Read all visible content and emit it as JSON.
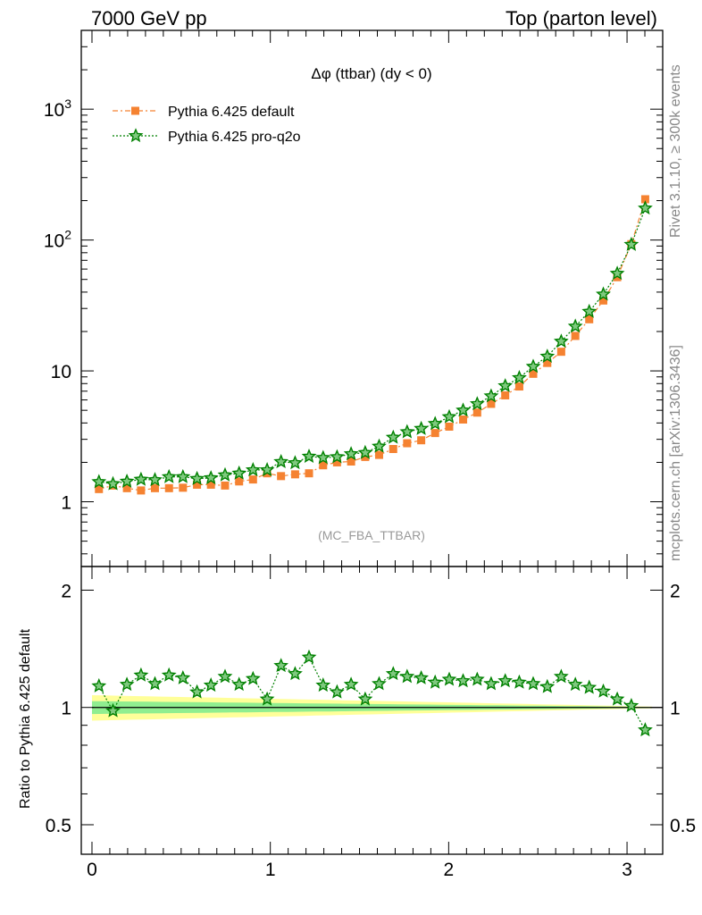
{
  "header": {
    "left": "7000 GeV pp",
    "right": "Top (parton level)"
  },
  "side_labels": {
    "rivet": "Rivet 3.1.10, ≥ 300k events",
    "mcplots": "mcplots.cern.ch [arXiv:1306.3436]"
  },
  "colors": {
    "default": "#f58231",
    "proq2o": "#008000",
    "band_inner": "#90ee90",
    "band_outer": "#ffff99"
  },
  "chart_data": [
    {
      "type": "line",
      "title": "Δφ (ttbar) (dy < 0)",
      "annotation": "(MC_FBA_TTBAR)",
      "yscale": "log",
      "ylim": [
        0.32,
        4000
      ],
      "xlim": [
        -0.06,
        3.2
      ],
      "yticks": [
        {
          "v": 1,
          "label": "1"
        },
        {
          "v": 10,
          "label": "10"
        },
        {
          "v": 100,
          "label": "10",
          "sup": "2"
        },
        {
          "v": 1000,
          "label": "10",
          "sup": "3"
        }
      ],
      "legend_position": "top-left",
      "x": [
        0.039,
        0.118,
        0.196,
        0.275,
        0.353,
        0.432,
        0.51,
        0.589,
        0.667,
        0.746,
        0.825,
        0.903,
        0.982,
        1.06,
        1.139,
        1.217,
        1.296,
        1.374,
        1.453,
        1.532,
        1.61,
        1.689,
        1.767,
        1.846,
        1.924,
        2.003,
        2.081,
        2.16,
        2.238,
        2.317,
        2.396,
        2.474,
        2.553,
        2.631,
        2.71,
        2.788,
        2.867,
        2.945,
        3.024,
        3.102
      ],
      "series": [
        {
          "name": "Pythia 6.425 default",
          "color_key": "default",
          "marker": "square",
          "values": [
            1.25,
            1.33,
            1.27,
            1.22,
            1.27,
            1.27,
            1.28,
            1.35,
            1.35,
            1.33,
            1.43,
            1.48,
            1.65,
            1.57,
            1.62,
            1.65,
            1.9,
            2.0,
            2.03,
            2.2,
            2.28,
            2.53,
            2.8,
            2.95,
            3.35,
            3.75,
            4.25,
            4.8,
            5.6,
            6.5,
            7.6,
            9.5,
            11.5,
            14.0,
            18.5,
            24.8,
            34.5,
            52.0,
            93.0,
            205.0
          ]
        },
        {
          "name": "Pythia 6.425 pro-q2o",
          "color_key": "proq2o",
          "marker": "star",
          "values": [
            1.42,
            1.37,
            1.43,
            1.48,
            1.47,
            1.55,
            1.55,
            1.5,
            1.52,
            1.6,
            1.65,
            1.75,
            1.75,
            2.02,
            1.98,
            2.22,
            2.17,
            2.2,
            2.32,
            2.37,
            2.65,
            3.1,
            3.42,
            3.62,
            3.95,
            4.45,
            5.0,
            5.6,
            6.42,
            7.68,
            8.85,
            10.8,
            12.9,
            16.8,
            21.9,
            28.4,
            38.5,
            55.5,
            92.3,
            175.0
          ]
        }
      ]
    },
    {
      "type": "line",
      "ylabel": "Ratio to Pythia 6.425 default",
      "ylim": [
        0.42,
        2.3
      ],
      "xlim": [
        -0.06,
        3.2
      ],
      "yticks": [
        0.5,
        1,
        2
      ],
      "xticks": [
        0,
        1,
        2,
        3
      ],
      "reference": 1,
      "series": [
        {
          "name": "Pythia 6.425 pro-q2o",
          "color_key": "proq2o",
          "values": [
            1.135,
            0.98,
            1.145,
            1.21,
            1.15,
            1.21,
            1.19,
            1.095,
            1.14,
            1.2,
            1.145,
            1.185,
            1.05,
            1.28,
            1.22,
            1.345,
            1.14,
            1.095,
            1.145,
            1.05,
            1.15,
            1.22,
            1.2,
            1.19,
            1.16,
            1.18,
            1.17,
            1.18,
            1.15,
            1.17,
            1.16,
            1.15,
            1.13,
            1.2,
            1.145,
            1.125,
            1.1,
            1.05,
            1.01,
            0.875
          ]
        }
      ]
    }
  ]
}
